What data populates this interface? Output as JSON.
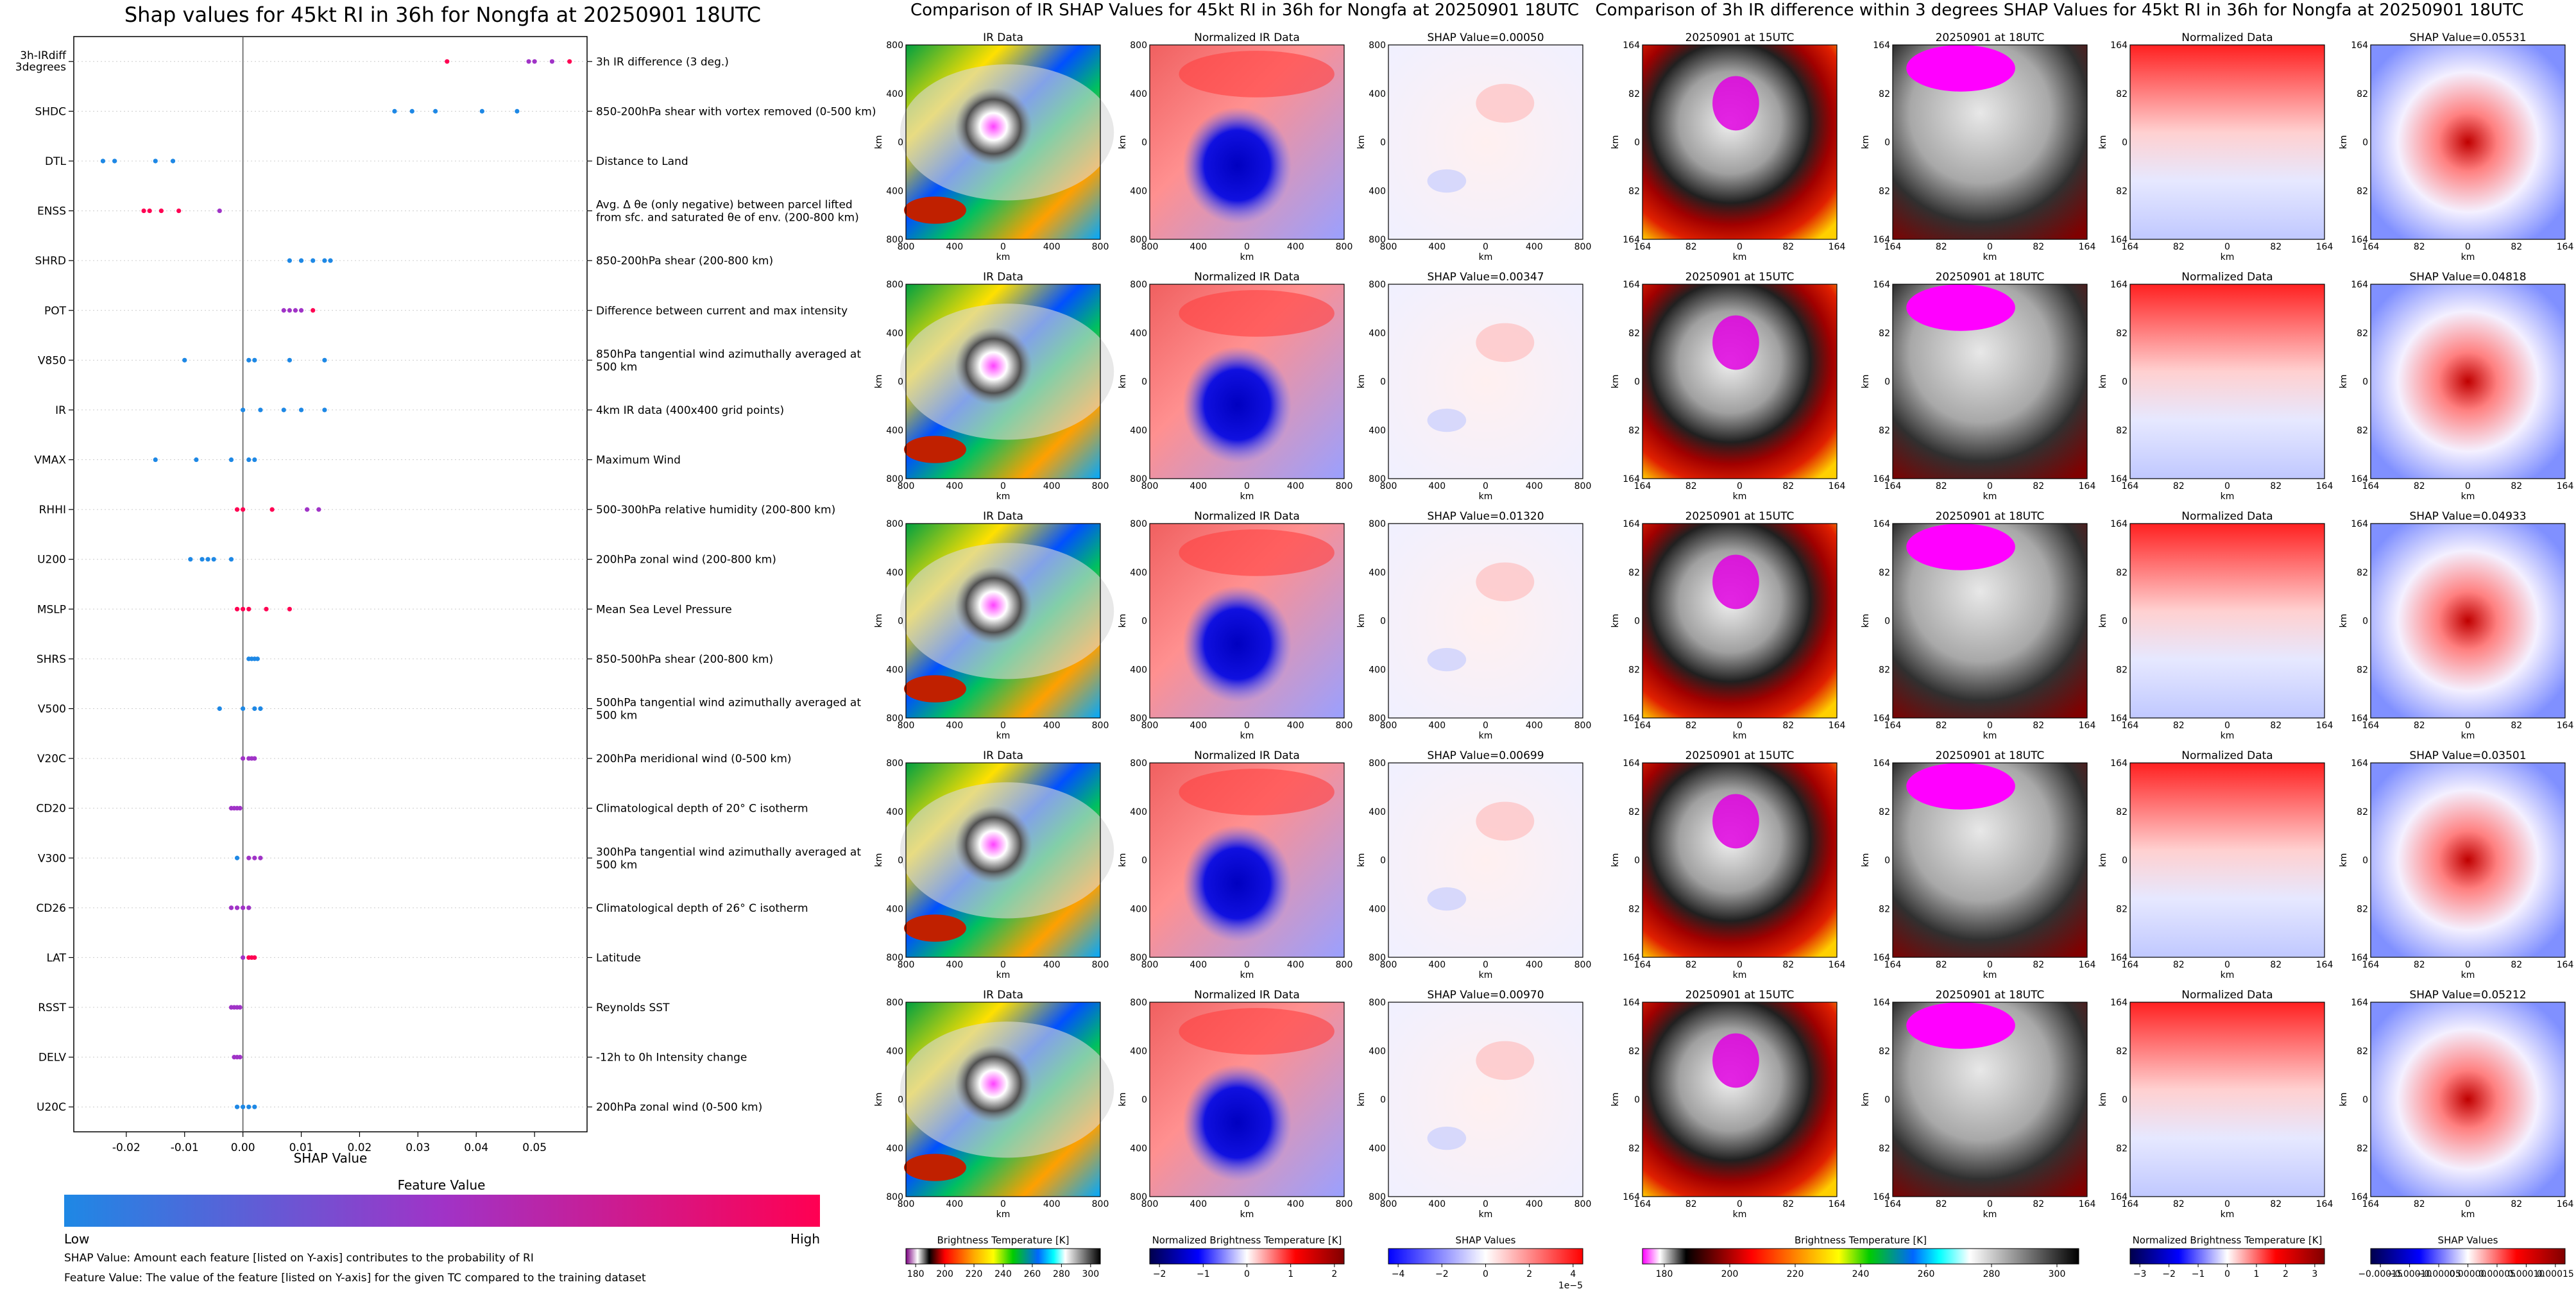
{
  "titles": {
    "left": "Shap values for 45kt RI in 36h for Nongfa at 20250901 18UTC",
    "mid": "Comparison of IR SHAP Values for 45kt RI in 36h for Nongfa at 20250901 18UTC",
    "right": "Comparison of 3h IR difference within 3 degrees SHAP Values for 45kt RI in 36h for Nongfa at 20250901 18UTC"
  },
  "left_panel": {
    "xlabel": "SHAP Value",
    "feature_value_label": "Feature Value",
    "low_label": "Low",
    "high_label": "High",
    "footnote1": "SHAP Value: Amount each feature [listed on Y-axis] contributes to the probability of RI",
    "footnote2": "Feature Value: The value of the feature [listed on Y-axis] for the given TC compared to the training dataset",
    "colors": {
      "low": "#1e88e5",
      "mid": "#a033c7",
      "high": "#ff0052"
    }
  },
  "chart_data": [
    {
      "type": "scatter",
      "title": "Shap values for 45kt RI in 36h for Nongfa at 20250901 18UTC",
      "xlabel": "SHAP Value",
      "xlim": [
        -0.029,
        0.059
      ],
      "xticks": [
        "-0.02",
        "-0.01",
        "0.00",
        "0.01",
        "0.02",
        "0.03",
        "0.04",
        "0.05"
      ],
      "xtick_values": [
        -0.02,
        -0.01,
        0.0,
        0.01,
        0.02,
        0.03,
        0.04,
        0.05
      ],
      "features": [
        {
          "code": "3h-IRdiff 3degrees",
          "desc": "3h IR difference (3 deg.)",
          "points": [
            {
              "x": 0.035,
              "c": "h"
            },
            {
              "x": 0.049,
              "c": "m"
            },
            {
              "x": 0.05,
              "c": "m"
            },
            {
              "x": 0.053,
              "c": "m"
            },
            {
              "x": 0.056,
              "c": "h"
            }
          ]
        },
        {
          "code": "SHDC",
          "desc": "850-200hPa shear with vortex removed (0-500 km)",
          "points": [
            {
              "x": 0.026,
              "c": "l"
            },
            {
              "x": 0.029,
              "c": "l"
            },
            {
              "x": 0.033,
              "c": "l"
            },
            {
              "x": 0.041,
              "c": "l"
            },
            {
              "x": 0.047,
              "c": "l"
            }
          ]
        },
        {
          "code": "DTL",
          "desc": "Distance to Land",
          "points": [
            {
              "x": -0.024,
              "c": "l"
            },
            {
              "x": -0.022,
              "c": "l"
            },
            {
              "x": -0.015,
              "c": "l"
            },
            {
              "x": -0.012,
              "c": "l"
            }
          ]
        },
        {
          "code": "ENSS",
          "desc": "Avg. Δ θe (only negative) between parcel lifted from sfc. and saturated θe of env. (200-800 km)",
          "points": [
            {
              "x": -0.017,
              "c": "h"
            },
            {
              "x": -0.016,
              "c": "h"
            },
            {
              "x": -0.014,
              "c": "h"
            },
            {
              "x": -0.011,
              "c": "h"
            },
            {
              "x": -0.004,
              "c": "m"
            }
          ]
        },
        {
          "code": "SHRD",
          "desc": "850-200hPa shear (200-800 km)",
          "points": [
            {
              "x": 0.008,
              "c": "l"
            },
            {
              "x": 0.01,
              "c": "l"
            },
            {
              "x": 0.012,
              "c": "l"
            },
            {
              "x": 0.014,
              "c": "l"
            },
            {
              "x": 0.015,
              "c": "l"
            }
          ]
        },
        {
          "code": "POT",
          "desc": "Difference between current and max intensity",
          "points": [
            {
              "x": 0.007,
              "c": "m"
            },
            {
              "x": 0.008,
              "c": "m"
            },
            {
              "x": 0.009,
              "c": "m"
            },
            {
              "x": 0.01,
              "c": "m"
            },
            {
              "x": 0.012,
              "c": "h"
            }
          ]
        },
        {
          "code": "V850",
          "desc": "850hPa tangential wind azimuthally averaged at 500 km",
          "points": [
            {
              "x": -0.01,
              "c": "l"
            },
            {
              "x": 0.001,
              "c": "l"
            },
            {
              "x": 0.002,
              "c": "l"
            },
            {
              "x": 0.008,
              "c": "l"
            },
            {
              "x": 0.014,
              "c": "l"
            }
          ]
        },
        {
          "code": "IR",
          "desc": "4km IR data (400x400 grid points)",
          "points": [
            {
              "x": 0.0,
              "c": "l"
            },
            {
              "x": 0.003,
              "c": "l"
            },
            {
              "x": 0.007,
              "c": "l"
            },
            {
              "x": 0.01,
              "c": "l"
            },
            {
              "x": 0.014,
              "c": "l"
            }
          ]
        },
        {
          "code": "VMAX",
          "desc": "Maximum Wind",
          "points": [
            {
              "x": -0.015,
              "c": "l"
            },
            {
              "x": -0.008,
              "c": "l"
            },
            {
              "x": -0.002,
              "c": "l"
            },
            {
              "x": 0.001,
              "c": "l"
            },
            {
              "x": 0.002,
              "c": "l"
            }
          ]
        },
        {
          "code": "RHHI",
          "desc": "500-300hPa relative humidity (200-800 km)",
          "points": [
            {
              "x": -0.001,
              "c": "h"
            },
            {
              "x": 0.0,
              "c": "h"
            },
            {
              "x": 0.005,
              "c": "h"
            },
            {
              "x": 0.011,
              "c": "m"
            },
            {
              "x": 0.013,
              "c": "m"
            }
          ]
        },
        {
          "code": "U200",
          "desc": "200hPa zonal wind (200-800 km)",
          "points": [
            {
              "x": -0.009,
              "c": "l"
            },
            {
              "x": -0.007,
              "c": "l"
            },
            {
              "x": -0.006,
              "c": "l"
            },
            {
              "x": -0.005,
              "c": "l"
            },
            {
              "x": -0.002,
              "c": "l"
            }
          ]
        },
        {
          "code": "MSLP",
          "desc": "Mean Sea Level Pressure",
          "points": [
            {
              "x": -0.001,
              "c": "h"
            },
            {
              "x": 0.0,
              "c": "h"
            },
            {
              "x": 0.001,
              "c": "h"
            },
            {
              "x": 0.004,
              "c": "h"
            },
            {
              "x": 0.008,
              "c": "h"
            }
          ]
        },
        {
          "code": "SHRS",
          "desc": "850-500hPa shear (200-800 km)",
          "points": [
            {
              "x": 0.001,
              "c": "l"
            },
            {
              "x": 0.0015,
              "c": "l"
            },
            {
              "x": 0.002,
              "c": "l"
            },
            {
              "x": 0.0025,
              "c": "l"
            }
          ]
        },
        {
          "code": "V500",
          "desc": "500hPa tangential wind azimuthally averaged at 500 km",
          "points": [
            {
              "x": -0.004,
              "c": "l"
            },
            {
              "x": 0.0,
              "c": "l"
            },
            {
              "x": 0.002,
              "c": "l"
            },
            {
              "x": 0.003,
              "c": "l"
            }
          ]
        },
        {
          "code": "V20C",
          "desc": "200hPa meridional wind (0-500 km)",
          "points": [
            {
              "x": 0.0,
              "c": "m"
            },
            {
              "x": 0.001,
              "c": "m"
            },
            {
              "x": 0.0015,
              "c": "m"
            },
            {
              "x": 0.002,
              "c": "m"
            }
          ]
        },
        {
          "code": "CD20",
          "desc": "Climatological depth of 20° C isotherm",
          "points": [
            {
              "x": -0.002,
              "c": "m"
            },
            {
              "x": -0.0015,
              "c": "m"
            },
            {
              "x": -0.001,
              "c": "m"
            },
            {
              "x": -0.0005,
              "c": "m"
            }
          ]
        },
        {
          "code": "V300",
          "desc": "300hPa tangential wind azimuthally averaged at 500 km",
          "points": [
            {
              "x": -0.001,
              "c": "l"
            },
            {
              "x": 0.001,
              "c": "m"
            },
            {
              "x": 0.002,
              "c": "m"
            },
            {
              "x": 0.003,
              "c": "m"
            }
          ]
        },
        {
          "code": "CD26",
          "desc": "Climatological depth of 26° C isotherm",
          "points": [
            {
              "x": -0.002,
              "c": "m"
            },
            {
              "x": -0.001,
              "c": "m"
            },
            {
              "x": 0.0,
              "c": "m"
            },
            {
              "x": 0.001,
              "c": "m"
            }
          ]
        },
        {
          "code": "LAT",
          "desc": "Latitude",
          "points": [
            {
              "x": 0.0,
              "c": "m"
            },
            {
              "x": 0.001,
              "c": "h"
            },
            {
              "x": 0.0015,
              "c": "h"
            },
            {
              "x": 0.002,
              "c": "h"
            }
          ]
        },
        {
          "code": "RSST",
          "desc": "Reynolds SST",
          "points": [
            {
              "x": -0.002,
              "c": "m"
            },
            {
              "x": -0.0015,
              "c": "m"
            },
            {
              "x": -0.001,
              "c": "m"
            },
            {
              "x": -0.0005,
              "c": "m"
            }
          ]
        },
        {
          "code": "DELV",
          "desc": "-12h to 0h Intensity change",
          "points": [
            {
              "x": -0.0015,
              "c": "m"
            },
            {
              "x": -0.001,
              "c": "m"
            },
            {
              "x": -0.0005,
              "c": "m"
            }
          ]
        },
        {
          "code": "U20C",
          "desc": "200hPa zonal wind (0-500 km)",
          "points": [
            {
              "x": -0.001,
              "c": "l"
            },
            {
              "x": 0.0,
              "c": "l"
            },
            {
              "x": 0.001,
              "c": "l"
            },
            {
              "x": 0.002,
              "c": "l"
            }
          ]
        }
      ]
    },
    {
      "type": "heatmap",
      "title": "Comparison of IR SHAP Values for 45kt RI in 36h for Nongfa at 20250901 18UTC",
      "columns": [
        "IR Data",
        "Normalized IR Data",
        "SHAP Value"
      ],
      "shap_values": [
        "0.00050",
        "0.00347",
        "0.01320",
        "0.00699",
        "0.00970"
      ],
      "axis_ticks": [
        "800",
        "400",
        "0",
        "400",
        "800"
      ],
      "axis_label": "km",
      "colorbars": [
        {
          "label": "Brightness Temperature [K]",
          "ticks": [
            "180",
            "200",
            "220",
            "240",
            "260",
            "280",
            "300"
          ]
        },
        {
          "label": "Normalized Brightness Temperature [K]",
          "ticks": [
            "−2",
            "−1",
            "0",
            "1",
            "2"
          ]
        },
        {
          "label": "SHAP Values",
          "ticks": [
            "−4",
            "−2",
            "0",
            "2",
            "4"
          ],
          "offset": "1e−5"
        }
      ]
    },
    {
      "type": "heatmap",
      "title": "Comparison of 3h IR difference within 3 degrees SHAP Values for 45kt RI in 36h for Nongfa at 20250901 18UTC",
      "columns": [
        "20250901 at 15UTC",
        "20250901 at 18UTC",
        "Normalized Data",
        "SHAP Value"
      ],
      "shap_values": [
        "0.05531",
        "0.04818",
        "0.04933",
        "0.03501",
        "0.05212"
      ],
      "axis_ticks": [
        "164",
        "82",
        "0",
        "82",
        "164"
      ],
      "axis_label": "km",
      "colorbars": [
        {
          "label": "Brightness Temperature [K]",
          "ticks": [
            "180",
            "200",
            "220",
            "240",
            "260",
            "280",
            "300"
          ]
        },
        {
          "label": "Normalized Brightness Temperature [K]",
          "ticks": [
            "−3",
            "−2",
            "−1",
            "0",
            "1",
            "2",
            "3"
          ]
        },
        {
          "label": "SHAP Values",
          "ticks": [
            "−0.00015",
            "−0.00010",
            "−0.00005",
            "0.00000",
            "0.00005",
            "0.00010",
            "0.00015"
          ]
        }
      ]
    }
  ],
  "labels": {
    "shap_prefix": "SHAP Value="
  }
}
